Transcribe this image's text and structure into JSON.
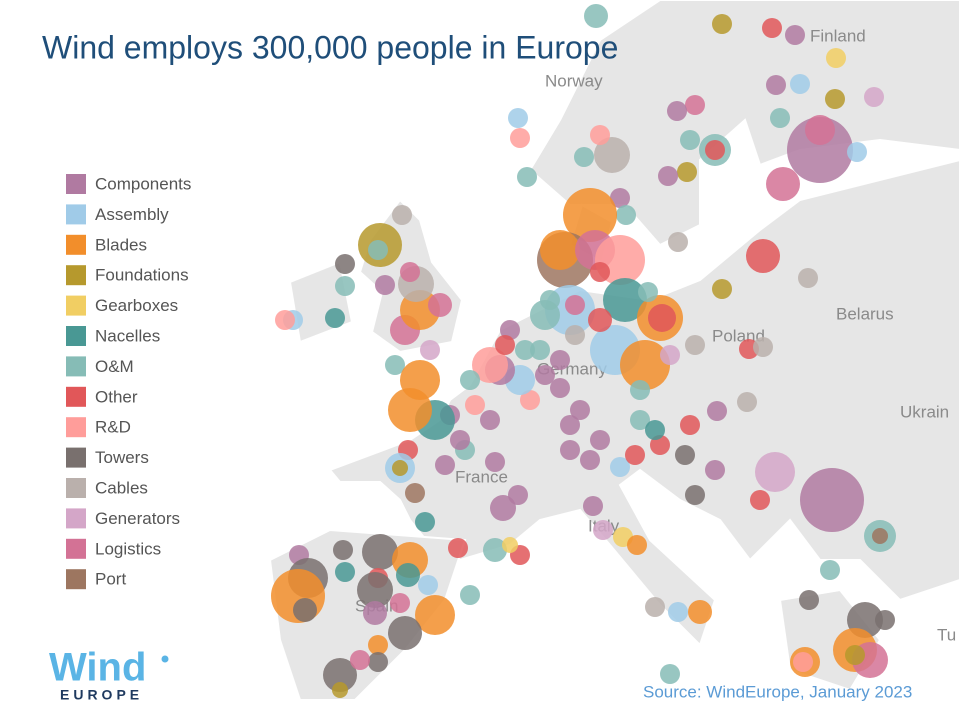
{
  "header": {
    "title": "Wind employs 300,000 people in Europe"
  },
  "legend": {
    "items": [
      {
        "label": "Components",
        "color": "#b07aa1"
      },
      {
        "label": "Assembly",
        "color": "#a0cbe8"
      },
      {
        "label": "Blades",
        "color": "#f28e2b"
      },
      {
        "label": "Foundations",
        "color": "#b6992d"
      },
      {
        "label": "Gearboxes",
        "color": "#f1ce63"
      },
      {
        "label": "Nacelles",
        "color": "#499894"
      },
      {
        "label": "O&M",
        "color": "#86bcb6"
      },
      {
        "label": "Other",
        "color": "#e15759"
      },
      {
        "label": "R&D",
        "color": "#ff9d9a"
      },
      {
        "label": "Towers",
        "color": "#79706e"
      },
      {
        "label": "Cables",
        "color": "#bab0ac"
      },
      {
        "label": "Generators",
        "color": "#d4a6c8"
      },
      {
        "label": "Logistics",
        "color": "#d37295"
      },
      {
        "label": "Port",
        "color": "#9d7660"
      }
    ]
  },
  "map": {
    "labels": [
      "Finland",
      "Norway",
      "Belarus",
      "Poland",
      "Ukrain",
      "Germany",
      "France",
      "Italy",
      "Spain",
      "Tu"
    ]
  },
  "source": "Source: WindEurope, January 2023",
  "logo": {
    "name": "Wind",
    "tagline": "EUROPE"
  }
}
